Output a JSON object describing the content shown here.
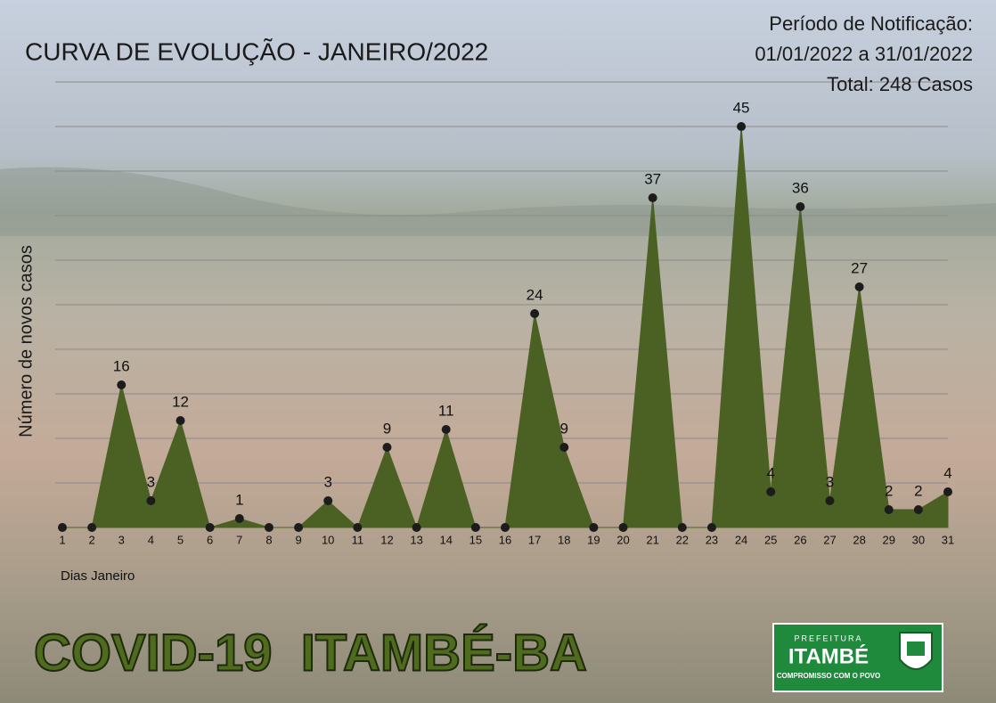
{
  "chart_data": {
    "type": "area",
    "title": "CURVA DE EVOLUÇÃO - JANEIRO/2022",
    "subtitle": [
      "Período de Notificação:",
      "01/01/2022 a 31/01/2022",
      "Total: 248 Casos"
    ],
    "y_label": "Número de novos casos",
    "x_label": "Dias Janeiro",
    "categories": [
      "1",
      "2",
      "3",
      "4",
      "5",
      "6",
      "7",
      "8",
      "9",
      "10",
      "11",
      "12",
      "13",
      "14",
      "15",
      "16",
      "17",
      "18",
      "19",
      "20",
      "21",
      "22",
      "23",
      "24",
      "25",
      "26",
      "27",
      "28",
      "29",
      "30",
      "31"
    ],
    "values": [
      0,
      0,
      16,
      3,
      12,
      0,
      1,
      0,
      0,
      3,
      0,
      9,
      0,
      11,
      0,
      0,
      24,
      9,
      0,
      0,
      37,
      0,
      0,
      45,
      4,
      36,
      3,
      27,
      2,
      2,
      4
    ],
    "color": "#4b6124",
    "marker_color": "#1c1c1c",
    "ylim": [
      0,
      50
    ],
    "yticks": [
      5,
      10,
      15,
      20,
      25,
      30,
      35,
      40,
      45,
      50
    ],
    "grid": true
  },
  "banner": "COVID-19  ITAMBÉ-BA",
  "logo": {
    "top": "PREFEITURA",
    "name": "ITAMBÉ",
    "motto": "COMPROMISSO COM O POVO"
  }
}
